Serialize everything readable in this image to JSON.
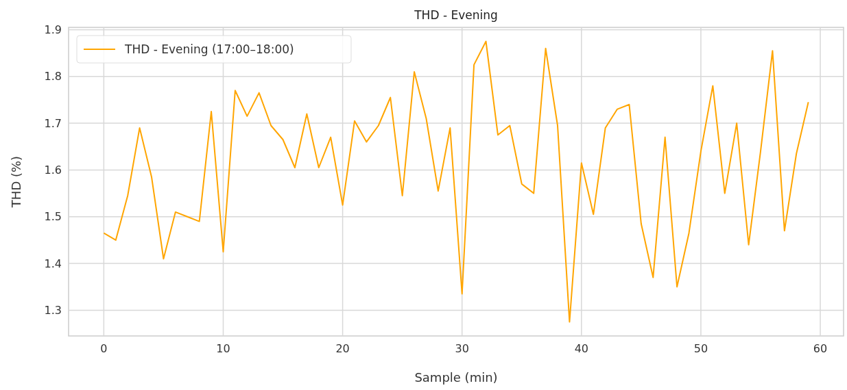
{
  "chart_data": {
    "type": "line",
    "title": "THD - Evening",
    "xlabel": "Sample (min)",
    "ylabel": "THD (%)",
    "x": [
      0,
      1,
      2,
      3,
      4,
      5,
      6,
      7,
      8,
      9,
      10,
      11,
      12,
      13,
      14,
      15,
      16,
      17,
      18,
      19,
      20,
      21,
      22,
      23,
      24,
      25,
      26,
      27,
      28,
      29,
      30,
      31,
      32,
      33,
      34,
      35,
      36,
      37,
      38,
      39,
      40,
      41,
      42,
      43,
      44,
      45,
      46,
      47,
      48,
      49,
      50,
      51,
      52,
      53,
      54,
      55,
      56,
      57,
      58,
      59
    ],
    "series": [
      {
        "name": "THD - Evening (17:00–18:00)",
        "color": "#ffa500",
        "values": [
          1.465,
          1.45,
          1.545,
          1.69,
          1.585,
          1.41,
          1.51,
          1.5,
          1.49,
          1.725,
          1.425,
          1.77,
          1.715,
          1.765,
          1.695,
          1.665,
          1.605,
          1.72,
          1.605,
          1.67,
          1.525,
          1.705,
          1.66,
          1.695,
          1.755,
          1.545,
          1.81,
          1.71,
          1.555,
          1.69,
          1.335,
          1.825,
          1.875,
          1.675,
          1.695,
          1.57,
          1.55,
          1.86,
          1.695,
          1.275,
          1.615,
          1.505,
          1.69,
          1.73,
          1.74,
          1.485,
          1.37,
          1.67,
          1.35,
          1.465,
          1.64,
          1.78,
          1.55,
          1.7,
          1.44,
          1.64,
          1.855,
          1.47,
          1.635,
          1.745
        ]
      }
    ],
    "xlim": [
      -2.95,
      61.95
    ],
    "xticks": [
      0,
      10,
      20,
      30,
      40,
      50,
      60
    ],
    "ylim": [
      1.245,
      1.905
    ],
    "yticks": [
      1.3,
      1.4,
      1.5,
      1.6,
      1.7,
      1.8,
      1.9
    ],
    "grid": true,
    "legend": "top left",
    "line_style": "solid",
    "marker": "none"
  }
}
